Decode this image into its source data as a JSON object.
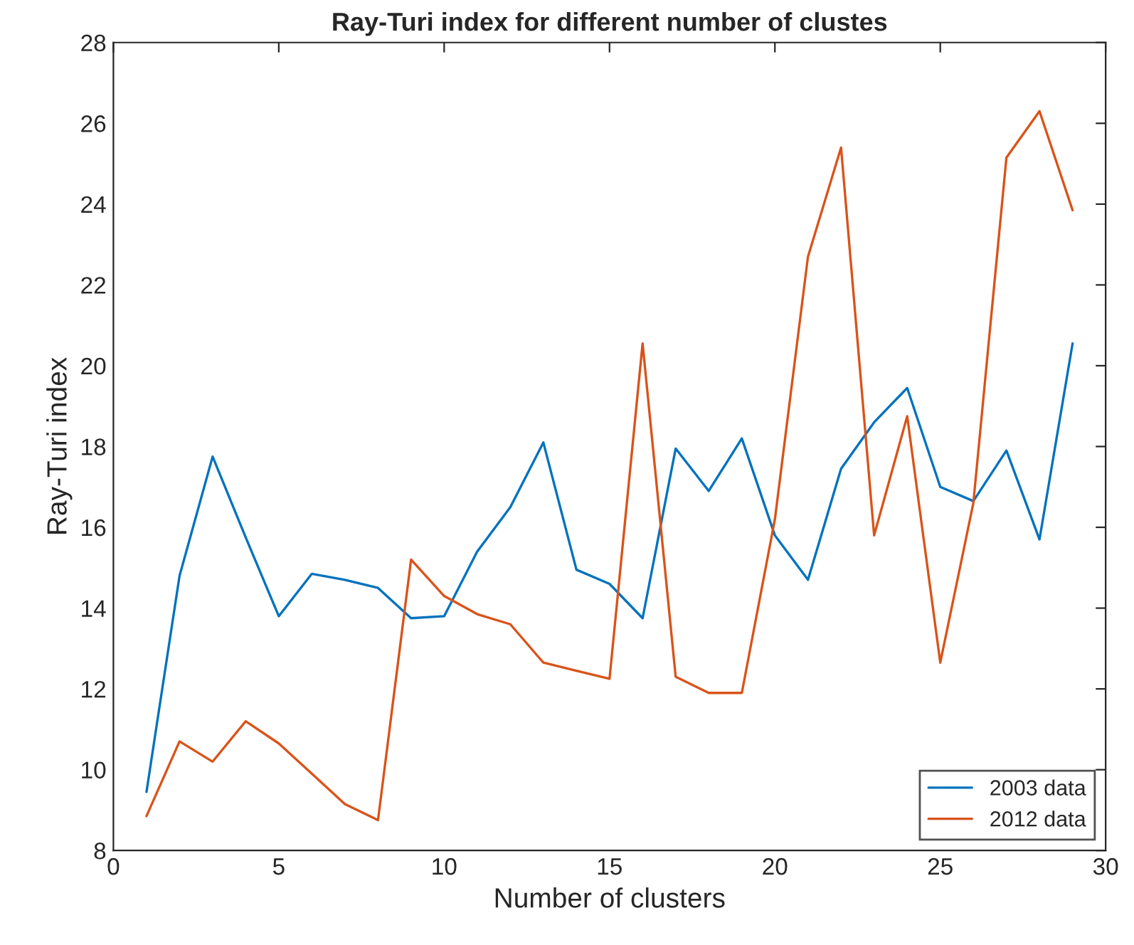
{
  "chart_data": {
    "type": "line",
    "title": "Ray-Turi index for different number of clustes",
    "xlabel": "Number of clusters",
    "ylabel": "Ray-Turi index",
    "x": [
      1,
      2,
      3,
      4,
      5,
      6,
      7,
      8,
      9,
      10,
      11,
      12,
      13,
      14,
      15,
      16,
      17,
      18,
      19,
      20,
      21,
      22,
      23,
      24,
      25,
      26,
      27,
      28,
      29
    ],
    "series": [
      {
        "name": "2003 data",
        "color": "#0072bd",
        "values": [
          9.45,
          14.8,
          17.75,
          15.75,
          13.8,
          14.85,
          14.7,
          14.5,
          13.75,
          13.8,
          15.4,
          16.5,
          18.1,
          14.95,
          14.6,
          13.75,
          17.95,
          16.9,
          18.2,
          15.8,
          14.7,
          17.45,
          18.6,
          19.45,
          17.0,
          16.65,
          17.9,
          15.7,
          20.55
        ]
      },
      {
        "name": "2012 data",
        "color": "#d95319",
        "values": [
          8.85,
          10.7,
          10.2,
          11.2,
          10.65,
          9.9,
          9.15,
          8.75,
          15.2,
          14.3,
          13.85,
          13.6,
          12.65,
          12.45,
          12.25,
          20.55,
          12.3,
          11.9,
          11.9,
          16.2,
          22.7,
          25.4,
          15.8,
          18.75,
          12.65,
          16.6,
          25.15,
          26.3,
          23.85
        ]
      }
    ],
    "xlim": [
      0,
      30
    ],
    "xticks": [
      0,
      5,
      10,
      15,
      20,
      25,
      30
    ],
    "ylim": [
      8,
      28
    ],
    "yticks": [
      8,
      10,
      12,
      14,
      16,
      18,
      20,
      22,
      24,
      26,
      28
    ],
    "grid": false,
    "legend": "bottom right"
  }
}
